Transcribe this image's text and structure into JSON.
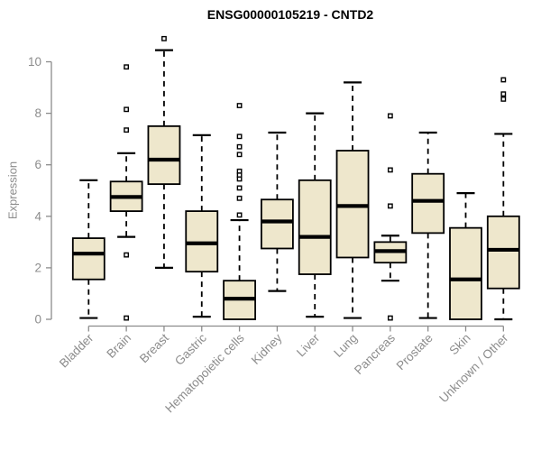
{
  "chart_data": {
    "type": "boxplot",
    "title": "ENSG00000105219 - CNTD2",
    "ylabel": "Expression",
    "xlabel": "",
    "ylim": [
      0,
      10
    ],
    "yticks": [
      0,
      2,
      4,
      6,
      8,
      10
    ],
    "grid": false,
    "legend": null,
    "categories": [
      "Bladder",
      "Brain",
      "Breast",
      "Gastric",
      "Hematopoietic cells",
      "Kidney",
      "Liver",
      "Lung",
      "Pancreas",
      "Prostate",
      "Skin",
      "Unknown / Other"
    ],
    "boxes": [
      {
        "category": "Bladder",
        "whisker_low": 0.05,
        "q1": 1.55,
        "median": 2.55,
        "q3": 3.15,
        "whisker_high": 5.4,
        "outliers": []
      },
      {
        "category": "Brain",
        "whisker_low": 3.2,
        "q1": 4.2,
        "median": 4.75,
        "q3": 5.35,
        "whisker_high": 6.45,
        "outliers": [
          9.8,
          8.15,
          7.35,
          2.5,
          0.05
        ]
      },
      {
        "category": "Breast",
        "whisker_low": 2.0,
        "q1": 5.25,
        "median": 6.2,
        "q3": 7.5,
        "whisker_high": 10.45,
        "outliers": [
          10.9
        ]
      },
      {
        "category": "Gastric",
        "whisker_low": 0.1,
        "q1": 1.85,
        "median": 2.95,
        "q3": 4.2,
        "whisker_high": 7.15,
        "outliers": []
      },
      {
        "category": "Hematopoietic cells",
        "whisker_low": 0.0,
        "q1": 0.0,
        "median": 0.8,
        "q3": 1.5,
        "whisker_high": 3.85,
        "outliers": [
          8.3,
          7.1,
          6.7,
          6.4,
          5.75,
          5.6,
          5.45,
          5.1,
          4.7,
          4.05
        ]
      },
      {
        "category": "Kidney",
        "whisker_low": 1.1,
        "q1": 2.75,
        "median": 3.8,
        "q3": 4.65,
        "whisker_high": 7.25,
        "outliers": []
      },
      {
        "category": "Liver",
        "whisker_low": 0.1,
        "q1": 1.75,
        "median": 3.2,
        "q3": 5.4,
        "whisker_high": 8.0,
        "outliers": []
      },
      {
        "category": "Lung",
        "whisker_low": 0.05,
        "q1": 2.4,
        "median": 4.4,
        "q3": 6.55,
        "whisker_high": 9.2,
        "outliers": []
      },
      {
        "category": "Pancreas",
        "whisker_low": 1.5,
        "q1": 2.2,
        "median": 2.65,
        "q3": 3.0,
        "whisker_high": 3.25,
        "outliers": [
          7.9,
          5.8,
          4.4,
          0.05
        ]
      },
      {
        "category": "Prostate",
        "whisker_low": 0.05,
        "q1": 3.35,
        "median": 4.6,
        "q3": 5.65,
        "whisker_high": 7.25,
        "outliers": []
      },
      {
        "category": "Skin",
        "whisker_low": 0.0,
        "q1": 0.0,
        "median": 1.55,
        "q3": 3.55,
        "whisker_high": 4.9,
        "outliers": []
      },
      {
        "category": "Unknown / Other",
        "whisker_low": 0.0,
        "q1": 1.2,
        "median": 2.7,
        "q3": 4.0,
        "whisker_high": 7.2,
        "outliers": [
          9.3,
          8.75,
          8.55
        ]
      }
    ],
    "colors": {
      "box_fill": "#EEE7CC",
      "box_border": "#000000",
      "median": "#000000",
      "whisker": "#000000",
      "outlier": "#000000",
      "axis": "#8C8C8C",
      "tick_label": "#8C8C8C",
      "title": "#000000",
      "background": "#FFFFFF"
    }
  }
}
